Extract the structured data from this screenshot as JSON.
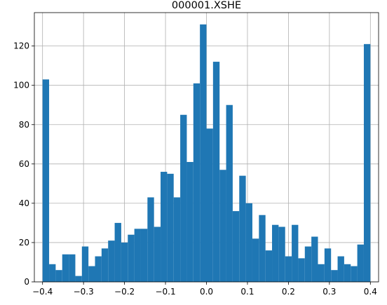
{
  "chart_data": {
    "type": "bar",
    "title": "000001.XSHE",
    "xlabel": "",
    "ylabel": "",
    "xlim": [
      -0.42,
      0.42
    ],
    "ylim": [
      0,
      137
    ],
    "grid": true,
    "bar_color": "#1f77b4",
    "bin_range": [
      -0.4,
      0.4
    ],
    "bin_count": 50,
    "values": [
      103,
      9,
      6,
      14,
      14,
      3,
      18,
      8,
      13,
      17,
      21,
      30,
      20,
      24,
      27,
      27,
      43,
      28,
      56,
      55,
      43,
      85,
      61,
      101,
      131,
      78,
      112,
      57,
      90,
      36,
      54,
      40,
      22,
      34,
      16,
      29,
      28,
      13,
      29,
      12,
      18,
      23,
      9,
      17,
      6,
      13,
      9,
      8,
      19,
      121
    ],
    "x_ticks": [
      -0.4,
      -0.3,
      -0.2,
      -0.1,
      0.0,
      0.1,
      0.2,
      0.3,
      0.4
    ],
    "x_tick_labels": [
      "−0.4",
      "−0.3",
      "−0.2",
      "−0.1",
      "0.0",
      "0.1",
      "0.2",
      "0.3",
      "0.4"
    ],
    "y_ticks": [
      0,
      20,
      40,
      60,
      80,
      100,
      120
    ],
    "y_tick_labels": [
      "0",
      "20",
      "40",
      "60",
      "80",
      "100",
      "120"
    ]
  }
}
